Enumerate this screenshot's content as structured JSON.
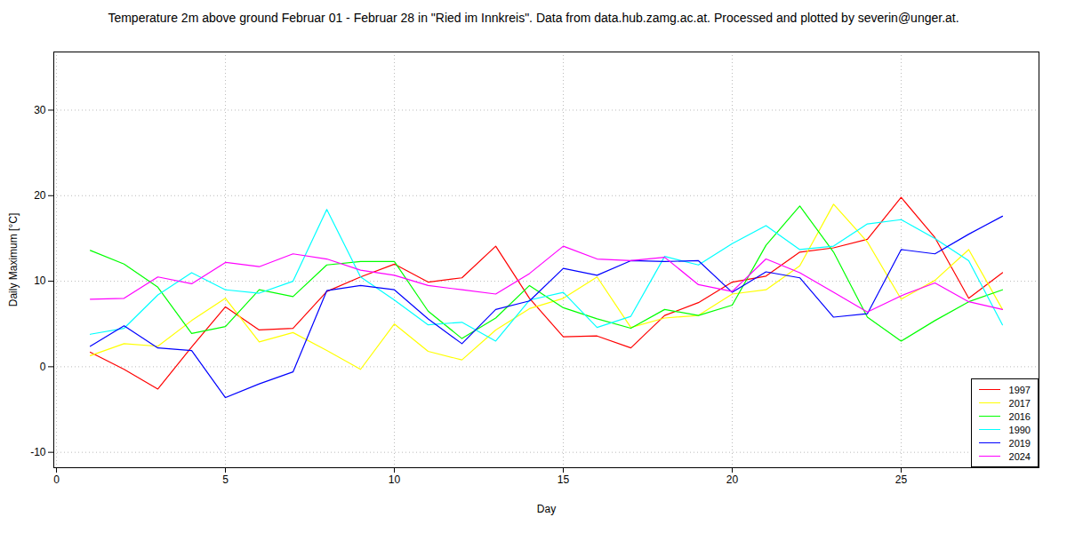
{
  "chart_data": {
    "type": "line",
    "title": "Temperature 2m above ground Februar 01 - Februar 28 in \"Ried im Innkreis\". Data from data.hub.zamg.ac.at. Processed and plotted by severin@unger.at.",
    "x_label": "Day",
    "y_label": "Daily Maximum [°C]",
    "x": [
      1,
      2,
      3,
      4,
      5,
      6,
      7,
      8,
      9,
      10,
      11,
      12,
      13,
      14,
      15,
      16,
      17,
      18,
      19,
      20,
      21,
      22,
      23,
      24,
      25,
      26,
      27,
      28
    ],
    "series": [
      {
        "name": "1997",
        "color": "#ff0000",
        "values": [
          1.7,
          -0.3,
          -2.6,
          2.3,
          7,
          4.3,
          4.5,
          8.8,
          10.5,
          12,
          9.9,
          10.4,
          14.1,
          8,
          3.5,
          3.6,
          2.2,
          6,
          7.5,
          9.9,
          10.6,
          13.4,
          13.9,
          14.9,
          19.8,
          15.1,
          8,
          11
        ]
      },
      {
        "name": "2017",
        "color": "#ffff00",
        "values": [
          1.3,
          2.7,
          2.4,
          5.4,
          8,
          2.9,
          4,
          1.9,
          -0.3,
          5,
          1.8,
          0.8,
          4.3,
          6.8,
          8,
          10.5,
          4.6,
          5.7,
          6,
          8.5,
          9,
          11.8,
          19,
          14.6,
          7.9,
          10.1,
          13.7,
          6.7
        ]
      },
      {
        "name": "2016",
        "color": "#00ff00",
        "values": [
          13.6,
          12,
          9.3,
          3.9,
          4.7,
          9,
          8.2,
          11.9,
          12.3,
          12.3,
          6.5,
          3.3,
          5.7,
          9.5,
          6.9,
          5.6,
          4.5,
          6.7,
          6,
          7.2,
          14.2,
          18.8,
          13.4,
          5.8,
          3,
          5.4,
          7.6,
          9
        ]
      },
      {
        "name": "1990",
        "color": "#00ffff",
        "values": [
          3.8,
          4.5,
          8.4,
          11,
          9,
          8.6,
          10,
          18.4,
          10.5,
          7.8,
          4.9,
          5.2,
          3,
          7.8,
          8.7,
          4.6,
          5.9,
          12.9,
          11.9,
          14.4,
          16.5,
          13.7,
          14.1,
          16.7,
          17.2,
          15,
          12.4,
          4.9
        ]
      },
      {
        "name": "2019",
        "color": "#0000ff",
        "values": [
          2.4,
          4.8,
          2.2,
          1.9,
          -3.6,
          -2,
          -0.6,
          8.9,
          9.5,
          9,
          5.6,
          2.7,
          6.7,
          7.7,
          11.5,
          10.7,
          12.4,
          12.3,
          12.4,
          8.7,
          11.1,
          10.4,
          5.8,
          6.2,
          13.7,
          13.2,
          15.5,
          17.6
        ]
      },
      {
        "name": "2024",
        "color": "#ff00ff",
        "values": [
          7.9,
          8,
          10.5,
          9.7,
          12.2,
          11.7,
          13.2,
          12.6,
          11.3,
          10.7,
          9.5,
          9,
          8.5,
          10.9,
          14.1,
          12.6,
          12.4,
          12.8,
          9.6,
          8.8,
          12.6,
          11,
          8.7,
          6.4,
          8.3,
          9.8,
          7.6,
          6.7
        ]
      }
    ],
    "xlim": [
      -0.08,
      29.08
    ],
    "ylim": [
      -11.8,
      36.8
    ],
    "xticks": [
      0,
      5,
      10,
      15,
      20,
      25
    ],
    "yticks": [
      -10,
      0,
      10,
      20,
      30
    ],
    "grid": true,
    "legend": "bottom right"
  }
}
